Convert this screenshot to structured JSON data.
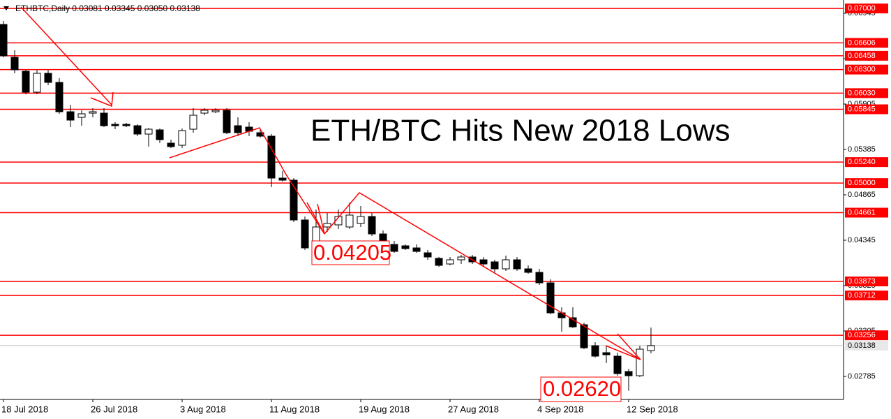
{
  "chart_data": {
    "type": "candlestick",
    "header": "ETHBTC,Daily  0.03081 0.03345 0.03050 0.03138",
    "title": "ETH/BTC Hits New 2018 Lows",
    "annotations": [
      "0.04205",
      "0.02620"
    ],
    "categories": [
      "18 Jul 2018",
      null,
      null,
      null,
      null,
      null,
      null,
      null,
      "26 Jul 2018",
      null,
      null,
      null,
      null,
      null,
      null,
      null,
      "3 Aug 2018",
      null,
      null,
      null,
      null,
      null,
      null,
      null,
      "11 Aug 2018",
      null,
      null,
      null,
      null,
      null,
      null,
      null,
      "19 Aug 2018",
      null,
      null,
      null,
      null,
      null,
      null,
      null,
      "27 Aug 2018",
      null,
      null,
      null,
      null,
      null,
      null,
      null,
      "4 Sep 2018",
      null,
      null,
      null,
      null,
      null,
      null,
      null,
      "12 Sep 2018",
      null,
      null
    ],
    "open": [
      0.06817,
      0.06441,
      0.06281,
      0.06041,
      0.06257,
      0.06153,
      0.05817,
      0.05753,
      0.05801,
      0.05801,
      0.05673,
      0.05673,
      0.05657,
      0.05561,
      0.05609,
      0.05457,
      0.05433,
      0.05617,
      0.05801,
      0.05817,
      0.05833,
      0.05657,
      0.05641,
      0.05577,
      0.05537,
      0.05057,
      0.05033,
      0.04577,
      0.04233,
      0.04497,
      0.04521,
      0.04497,
      0.04537,
      0.04617,
      0.04417,
      0.04297,
      0.04281,
      0.04257,
      0.04201,
      0.04137,
      0.04073,
      0.04121,
      0.04153,
      0.04121,
      0.04097,
      0.04017,
      0.04121,
      0.04017,
      0.03977,
      0.03857,
      0.03513,
      0.03457,
      0.03377,
      0.03137,
      0.03057,
      0.03017,
      0.02841,
      0.02793,
      0.03081
    ],
    "high": [
      0.06857,
      0.06521,
      0.06297,
      0.06297,
      0.06297,
      0.06201,
      0.05897,
      0.05833,
      0.05857,
      0.05857,
      0.05697,
      0.05689,
      0.05673,
      0.05633,
      0.05625,
      0.05497,
      0.05625,
      0.05857,
      0.05857,
      0.05857,
      0.05857,
      0.05753,
      0.05697,
      0.05617,
      0.05561,
      0.05137,
      0.05057,
      0.04617,
      0.04697,
      0.04657,
      0.04697,
      0.04777,
      0.04737,
      0.04657,
      0.04457,
      0.04337,
      0.04297,
      0.04297,
      0.04233,
      0.04153,
      0.04153,
      0.04177,
      0.04177,
      0.04153,
      0.04121,
      0.04169,
      0.04153,
      0.04057,
      0.04017,
      0.03897,
      0.03577,
      0.03577,
      0.03401,
      0.03177,
      0.03137,
      0.03057,
      0.02873,
      0.03137,
      0.03345
    ],
    "low": [
      0.06441,
      0.06257,
      0.06017,
      0.06017,
      0.06121,
      0.05793,
      0.05641,
      0.05657,
      0.05753,
      0.05641,
      0.05617,
      0.05641,
      0.05537,
      0.05417,
      0.05457,
      0.05401,
      0.05401,
      0.05577,
      0.05777,
      0.05801,
      0.05561,
      0.05537,
      0.05537,
      0.05521,
      0.04953,
      0.05017,
      0.04553,
      0.04233,
      0.04205,
      0.04441,
      0.04473,
      0.04473,
      0.04497,
      0.04393,
      0.04281,
      0.04201,
      0.04233,
      0.04201,
      0.04121,
      0.04041,
      0.04057,
      0.04073,
      0.04073,
      0.04041,
      0.03977,
      0.03993,
      0.03993,
      0.03961,
      0.03833,
      0.03497,
      0.03297,
      0.03337,
      0.03097,
      0.03001,
      0.02937,
      0.02793,
      0.0262,
      0.02777,
      0.0305
    ],
    "close": [
      0.06457,
      0.06297,
      0.06041,
      0.06257,
      0.06153,
      0.05817,
      0.05721,
      0.05793,
      0.05817,
      0.05657,
      0.05657,
      0.05657,
      0.05561,
      0.05617,
      0.05497,
      0.05417,
      0.05601,
      0.05777,
      0.05833,
      0.05833,
      0.05577,
      0.05577,
      0.05593,
      0.05537,
      0.05057,
      0.05033,
      0.04577,
      0.04257,
      0.04497,
      0.04537,
      0.04617,
      0.04633,
      0.04617,
      0.04417,
      0.04297,
      0.04217,
      0.04249,
      0.04217,
      0.04153,
      0.04057,
      0.04121,
      0.04153,
      0.04097,
      0.04073,
      0.04017,
      0.04121,
      0.04017,
      0.03977,
      0.03857,
      0.03513,
      0.03457,
      0.03353,
      0.03113,
      0.03017,
      0.03033,
      0.02817,
      0.02793,
      0.03097,
      0.03138
    ],
    "up_color": "#ffffff",
    "down_color": "#000000",
    "ylim": [
      0.02537,
      0.07057
    ],
    "yticks": [
      0.02785,
      0.03305,
      0.03825,
      0.04345,
      0.04865,
      0.05385,
      0.05905,
      0.06425,
      0.06945
    ],
    "levels": {
      "color": "#ff0000",
      "values": [
        0.07,
        0.06606,
        0.06458,
        0.063,
        0.0603,
        0.05845,
        0.0524,
        0.05,
        0.04661,
        0.03873,
        0.03712,
        0.03256
      ],
      "value_labels": [
        "0.07000",
        "0.06606",
        "0.06458",
        "0.06300",
        "0.06030",
        "0.05845",
        "0.05240",
        "0.05000",
        "0.04661",
        "0.03873",
        "0.03712",
        "0.03256"
      ]
    },
    "last_price": 0.03138
  }
}
